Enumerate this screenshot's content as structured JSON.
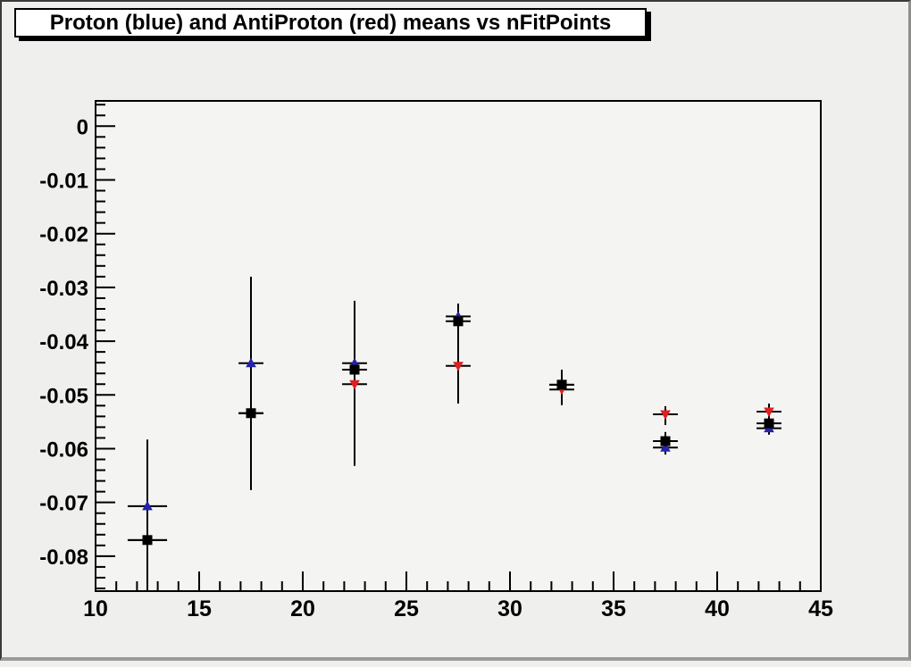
{
  "window": {
    "background": "#efefee",
    "frame_background": "#f4f4f3",
    "border_dark": "#3a3a3a",
    "border_light": "#9a9a9a"
  },
  "title": {
    "text": "Proton (blue) and AntiProton (red) means vs nFitPoints",
    "background": "#ffffff",
    "border_color": "#000000",
    "shadow_color": "#000000"
  },
  "chart_data": {
    "type": "scatter",
    "title": "Proton (blue) and AntiProton (red) means vs nFitPoints",
    "xlabel": "",
    "ylabel": "",
    "xlim": [
      10,
      45
    ],
    "ylim": [
      -0.0865,
      0.0047
    ],
    "grid": false,
    "legend": "none",
    "x_major_tick_step": 5,
    "x_minor_tick_step": 1,
    "y_major_tick_step": 0.01,
    "y_minor_tick_step": 0.002,
    "x_tick_labels": [
      {
        "value": 10,
        "label": "10"
      },
      {
        "value": 15,
        "label": "15"
      },
      {
        "value": 20,
        "label": "20"
      },
      {
        "value": 25,
        "label": "25"
      },
      {
        "value": 30,
        "label": "30"
      },
      {
        "value": 35,
        "label": "35"
      },
      {
        "value": 40,
        "label": "40"
      },
      {
        "value": 45,
        "label": "45"
      }
    ],
    "y_tick_labels": [
      {
        "value": 0,
        "label": "0"
      },
      {
        "value": -0.01,
        "label": "-0.01"
      },
      {
        "value": -0.02,
        "label": "-0.02"
      },
      {
        "value": -0.03,
        "label": "-0.03"
      },
      {
        "value": -0.04,
        "label": "-0.04"
      },
      {
        "value": -0.05,
        "label": "-0.05"
      },
      {
        "value": -0.06,
        "label": "-0.06"
      },
      {
        "value": -0.07,
        "label": "-0.07"
      },
      {
        "value": -0.08,
        "label": "-0.08"
      }
    ],
    "series": [
      {
        "name": "Proton (blue)",
        "marker": "triangle-up",
        "color": "#2323ad",
        "points": [
          {
            "x": 12.5,
            "y": -0.0707,
            "cap_halfwidth": 0.95
          },
          {
            "x": 17.5,
            "y": -0.0441,
            "cap_halfwidth": 0.6
          },
          {
            "x": 22.5,
            "y": -0.0441,
            "cap_halfwidth": 0.6
          },
          {
            "x": 27.5,
            "y": -0.0354,
            "cap_halfwidth": 0.6
          },
          {
            "x": 32.5,
            "y": -0.0481,
            "cap_halfwidth": 0.6,
            "hidden_behind_black": true
          },
          {
            "x": 37.5,
            "y": -0.0598,
            "cap_halfwidth": 0.6
          },
          {
            "x": 42.5,
            "y": -0.0562,
            "cap_halfwidth": 0.6
          }
        ]
      },
      {
        "name": "AntiProton (red)",
        "marker": "triangle-down",
        "color": "#e02020",
        "points": [
          {
            "x": 12.5,
            "y": -0.077,
            "cap_halfwidth": 0.95,
            "hidden_behind_black": true
          },
          {
            "x": 17.5,
            "y": -0.0534,
            "cap_halfwidth": 0.6,
            "hidden_behind_black": true
          },
          {
            "x": 22.5,
            "y": -0.048,
            "cap_halfwidth": 0.6
          },
          {
            "x": 27.5,
            "y": -0.0446,
            "cap_halfwidth": 0.6
          },
          {
            "x": 32.5,
            "y": -0.049,
            "cap_halfwidth": 0.6
          },
          {
            "x": 37.5,
            "y": -0.0536,
            "cap_halfwidth": 0.6
          },
          {
            "x": 42.5,
            "y": -0.0531,
            "cap_halfwidth": 0.6
          }
        ]
      },
      {
        "name": "unlabeled-black",
        "marker": "square",
        "color": "#000000",
        "points": [
          {
            "x": 12.5,
            "y": -0.077,
            "cap_halfwidth": 0.95
          },
          {
            "x": 17.5,
            "y": -0.0534,
            "cap_halfwidth": 0.6
          },
          {
            "x": 22.5,
            "y": -0.0453,
            "cap_halfwidth": 0.6
          },
          {
            "x": 27.5,
            "y": -0.0363,
            "cap_halfwidth": 0.6
          },
          {
            "x": 32.5,
            "y": -0.0481,
            "cap_halfwidth": 0.6
          },
          {
            "x": 37.5,
            "y": -0.0586,
            "cap_halfwidth": 0.6
          },
          {
            "x": 42.5,
            "y": -0.0553,
            "cap_halfwidth": 0.6
          }
        ]
      }
    ],
    "error_bars": [
      {
        "x": 12.5,
        "y_low": -0.0865,
        "y_high": -0.0583,
        "clipped_at_bottom": true
      },
      {
        "x": 17.5,
        "y_low": -0.0677,
        "y_high": -0.028
      },
      {
        "x": 22.5,
        "y_low": -0.0632,
        "y_high": -0.0325
      },
      {
        "x": 27.5,
        "y_low": -0.0516,
        "y_high": -0.033
      },
      {
        "x": 32.5,
        "y_low": -0.0519,
        "y_high": -0.0453
      },
      {
        "x": 37.5,
        "y_low": -0.0556,
        "y_high": -0.0521
      },
      {
        "x": 37.5,
        "y_low": -0.0611,
        "y_high": -0.0569
      },
      {
        "x": 42.5,
        "y_low": -0.0574,
        "y_high": -0.0516
      }
    ],
    "error_bar_color": "#000000"
  }
}
